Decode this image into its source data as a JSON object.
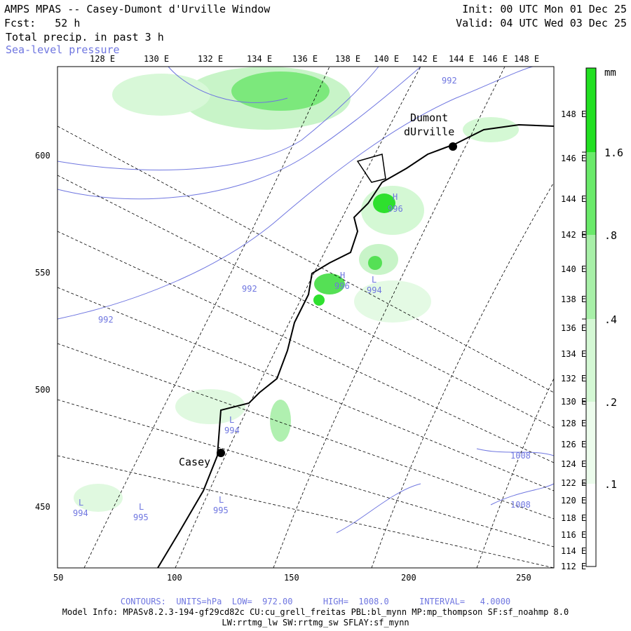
{
  "header": {
    "title": "AMPS MPAS -- Casey-Dumont d'Urville Window",
    "forecast": "Fcst:   52 h",
    "init": "Init: 00 UTC Mon 01 Dec 25",
    "valid": "Valid: 04 UTC Wed 03 Dec 25",
    "field1": "Total precip. in past 3 h",
    "field2": "Sea-level pressure"
  },
  "axes": {
    "top_lon_labels": [
      "128 E",
      "130 E",
      "132 E",
      "134 E",
      "136 E",
      "138 E",
      "140 E",
      "142 E",
      "144 E",
      "146 E",
      "148 E"
    ],
    "right_lon_labels": [
      "148 E",
      "146 E",
      "144 E",
      "142 E",
      "140 E",
      "138 E",
      "136 E",
      "134 E",
      "132 E",
      "130 E",
      "128 E",
      "126 E",
      "124 E",
      "122 E",
      "120 E",
      "118 E",
      "116 E",
      "114 E",
      "112 E"
    ],
    "x_ticks": [
      "50",
      "100",
      "150",
      "200",
      "250"
    ],
    "y_ticks": [
      "600",
      "550",
      "500",
      "450"
    ]
  },
  "colorbar": {
    "unit": "mm",
    "labels": [
      "1.6",
      ".8",
      ".4",
      ".2",
      ".1"
    ],
    "colors": [
      "#22e022",
      "#6aea6a",
      "#a8f0a8",
      "#d4f8d4",
      "#ecfcec"
    ]
  },
  "places": [
    {
      "name": "Dumont",
      "name2": "dUrville"
    },
    {
      "name": "Casey"
    }
  ],
  "pressure_labels": [
    {
      "text": "992"
    },
    {
      "text": "992"
    },
    {
      "text": "992"
    },
    {
      "text": "H",
      "value": "996"
    },
    {
      "text": "H",
      "value": "996"
    },
    {
      "text": "L",
      "value": "994"
    },
    {
      "text": "L",
      "value": "994"
    },
    {
      "text": "L",
      "value": "994"
    },
    {
      "text": "L",
      "value": "995"
    },
    {
      "text": "L",
      "value": "995"
    },
    {
      "text": "1008"
    },
    {
      "text": "1008"
    }
  ],
  "footer": {
    "contours": "CONTOURS:  UNITS=hPa  LOW=  972.00      HIGH=  1008.0      INTERVAL=   4.0000",
    "model_info": "Model Info: MPASv8.2.3-194-gf29cd82c CU:cu_grell_freitas PBL:bl_mynn MP:mp_thompson SF:sf_noahmp 8.0",
    "model_info2": "LW:rrtmg_lw SW:rrtmg_sw SFLAY:sf_mynn"
  }
}
